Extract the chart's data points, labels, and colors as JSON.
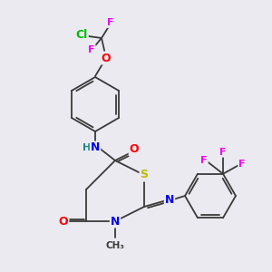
{
  "background_color": "#eaeaf0",
  "bond_color": "#3a3a3a",
  "atom_colors": {
    "F": "#ee00ee",
    "Cl": "#00bb00",
    "O": "#ff0000",
    "N": "#0000ee",
    "S": "#bbbb00",
    "H": "#228888",
    "C": "#3a3a3a"
  },
  "lw": 1.3,
  "fs_heavy": 9,
  "fs_small": 8
}
